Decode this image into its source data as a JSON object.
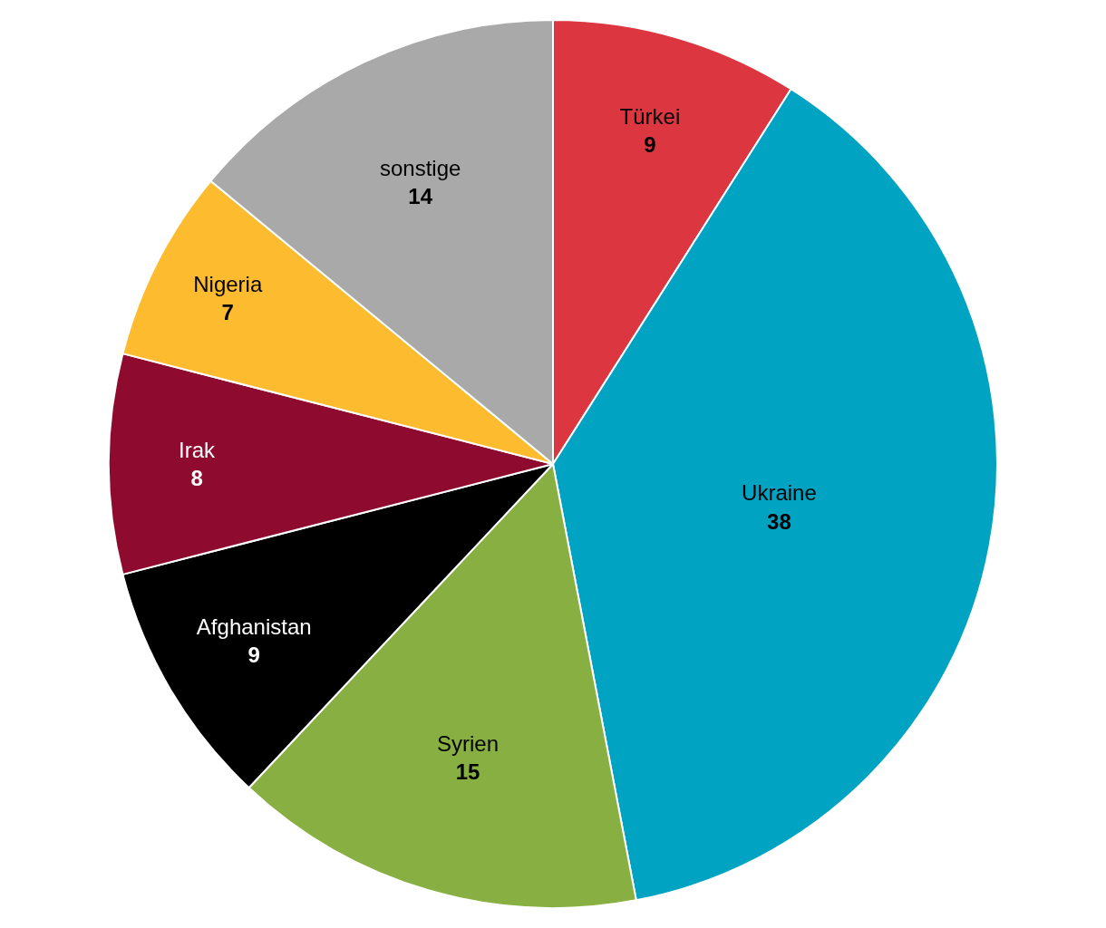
{
  "chart_data": {
    "type": "pie",
    "categories": [
      "Türkei",
      "Ukraine",
      "Syrien",
      "Afghanistan",
      "Irak",
      "Nigeria",
      "sonstige"
    ],
    "values": [
      9,
      38,
      15,
      9,
      8,
      7,
      14
    ],
    "colors": [
      "#dc3740",
      "#00a3c2",
      "#87af41",
      "#000000",
      "#8e0b2f",
      "#fdbb2f",
      "#a9a9a9"
    ],
    "data_labels": true,
    "legend": false
  }
}
